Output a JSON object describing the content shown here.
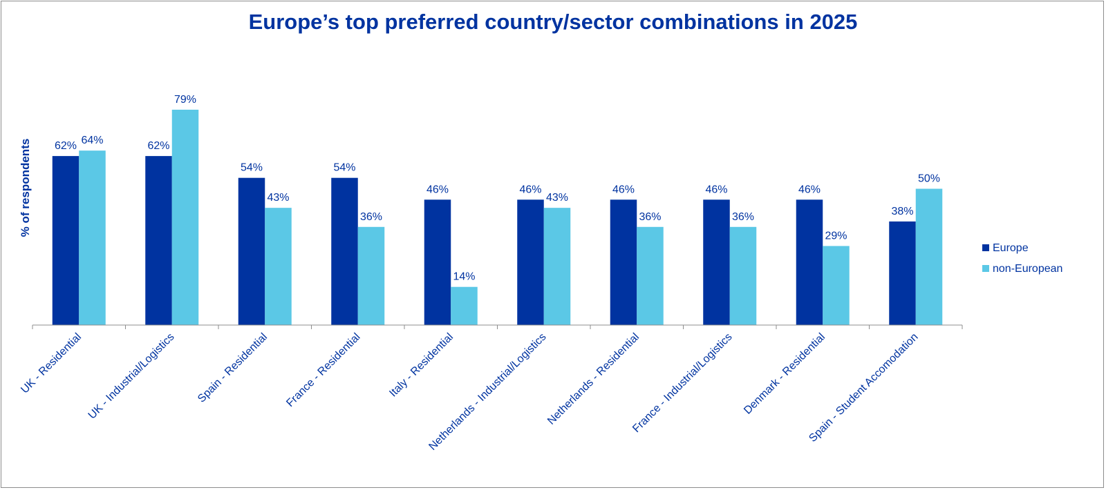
{
  "chart_data": {
    "type": "bar",
    "title": "Europe’s top preferred country/sector combinations in 2025",
    "xlabel": "",
    "ylabel": "% of respondents",
    "ylim": [
      0,
      100
    ],
    "value_suffix": "%",
    "grid": false,
    "legend_position": "right",
    "categories": [
      "UK - Residential",
      "UK - Industrial/Logistics",
      "Spain - Residential",
      "France - Residential",
      "Italy - Residential",
      "Netherlands - Industrial/Logistics",
      "Netherlands - Residential",
      "France - Industrial/Logistics",
      "Denmark - Residential",
      "Spain - Student Accomodation"
    ],
    "series": [
      {
        "name": "Europe",
        "color": "#0033a0",
        "values": [
          62,
          62,
          54,
          54,
          46,
          46,
          46,
          46,
          46,
          38
        ]
      },
      {
        "name": "non-European",
        "color": "#5bc8e6",
        "values": [
          64,
          79,
          43,
          36,
          14,
          43,
          36,
          36,
          29,
          50
        ]
      }
    ],
    "text_color": "#0033a0",
    "axis_color": "#8c8c8c"
  }
}
